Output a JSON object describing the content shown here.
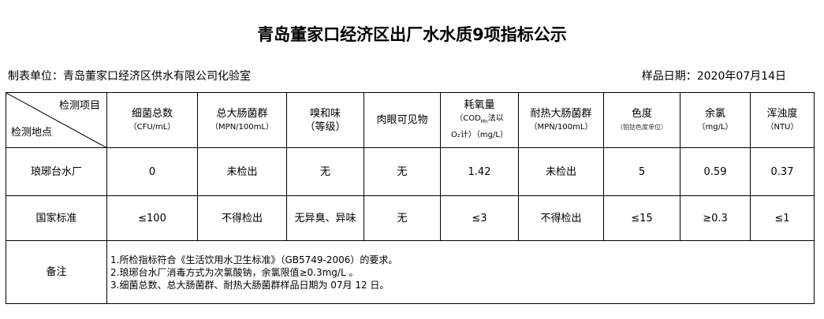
{
  "title": "青岛董家口经济区出厂水水质9项指标公示",
  "unit": "制表单位：青岛董家口经济区供水有限公司化验室",
  "sample_date": "样品日期：2020年07月14日",
  "header": {
    "item_label": "检测项目",
    "site_label": "检测地点",
    "cols": [
      {
        "name": "细菌总数",
        "unit": "（CFU/mL）"
      },
      {
        "name": "总大肠菌群",
        "unit": "（MPN/100mL）"
      },
      {
        "name": "嗅和味",
        "unit": "（等级）"
      },
      {
        "name": "肉眼可见物",
        "unit": ""
      },
      {
        "name": "耗氧量",
        "unit": "（COD<sub>Mn</sub>法以",
        "unit2": "O₂计）（mg/L）"
      },
      {
        "name": "耐热大肠菌群",
        "unit": "（MPN/100mL）"
      },
      {
        "name": "色度",
        "unit": "（铂钴色度单位）"
      },
      {
        "name": "余氯",
        "unit": "（mg/L）"
      },
      {
        "name": "浑浊度",
        "unit": "（NTU）"
      }
    ]
  },
  "rows": [
    {
      "site": "琅琊台水厂",
      "values": [
        "0",
        "未检出",
        "无",
        "无",
        "1.42",
        "未检出",
        "5",
        "0.59",
        "0.37"
      ]
    },
    {
      "site": "国家标准",
      "values": [
        "≤100",
        "不得检出",
        "无异臭、异味",
        "无",
        "≤3",
        "不得检出",
        "≤15",
        "≥0.3",
        "≤1"
      ]
    }
  ],
  "remarks_label": "备注",
  "remarks": [
    "1.所检指标符合《生活饮用水卫生标准》（GB5749-2006）的要求。",
    "2.琅琊台水厂消毒方式为次氯酸钠，余氯限值≥0.3mg/L 。",
    "3.细菌总数、总大肠菌群、耐热大肠菌群样品日期为 07月 12 日。"
  ]
}
